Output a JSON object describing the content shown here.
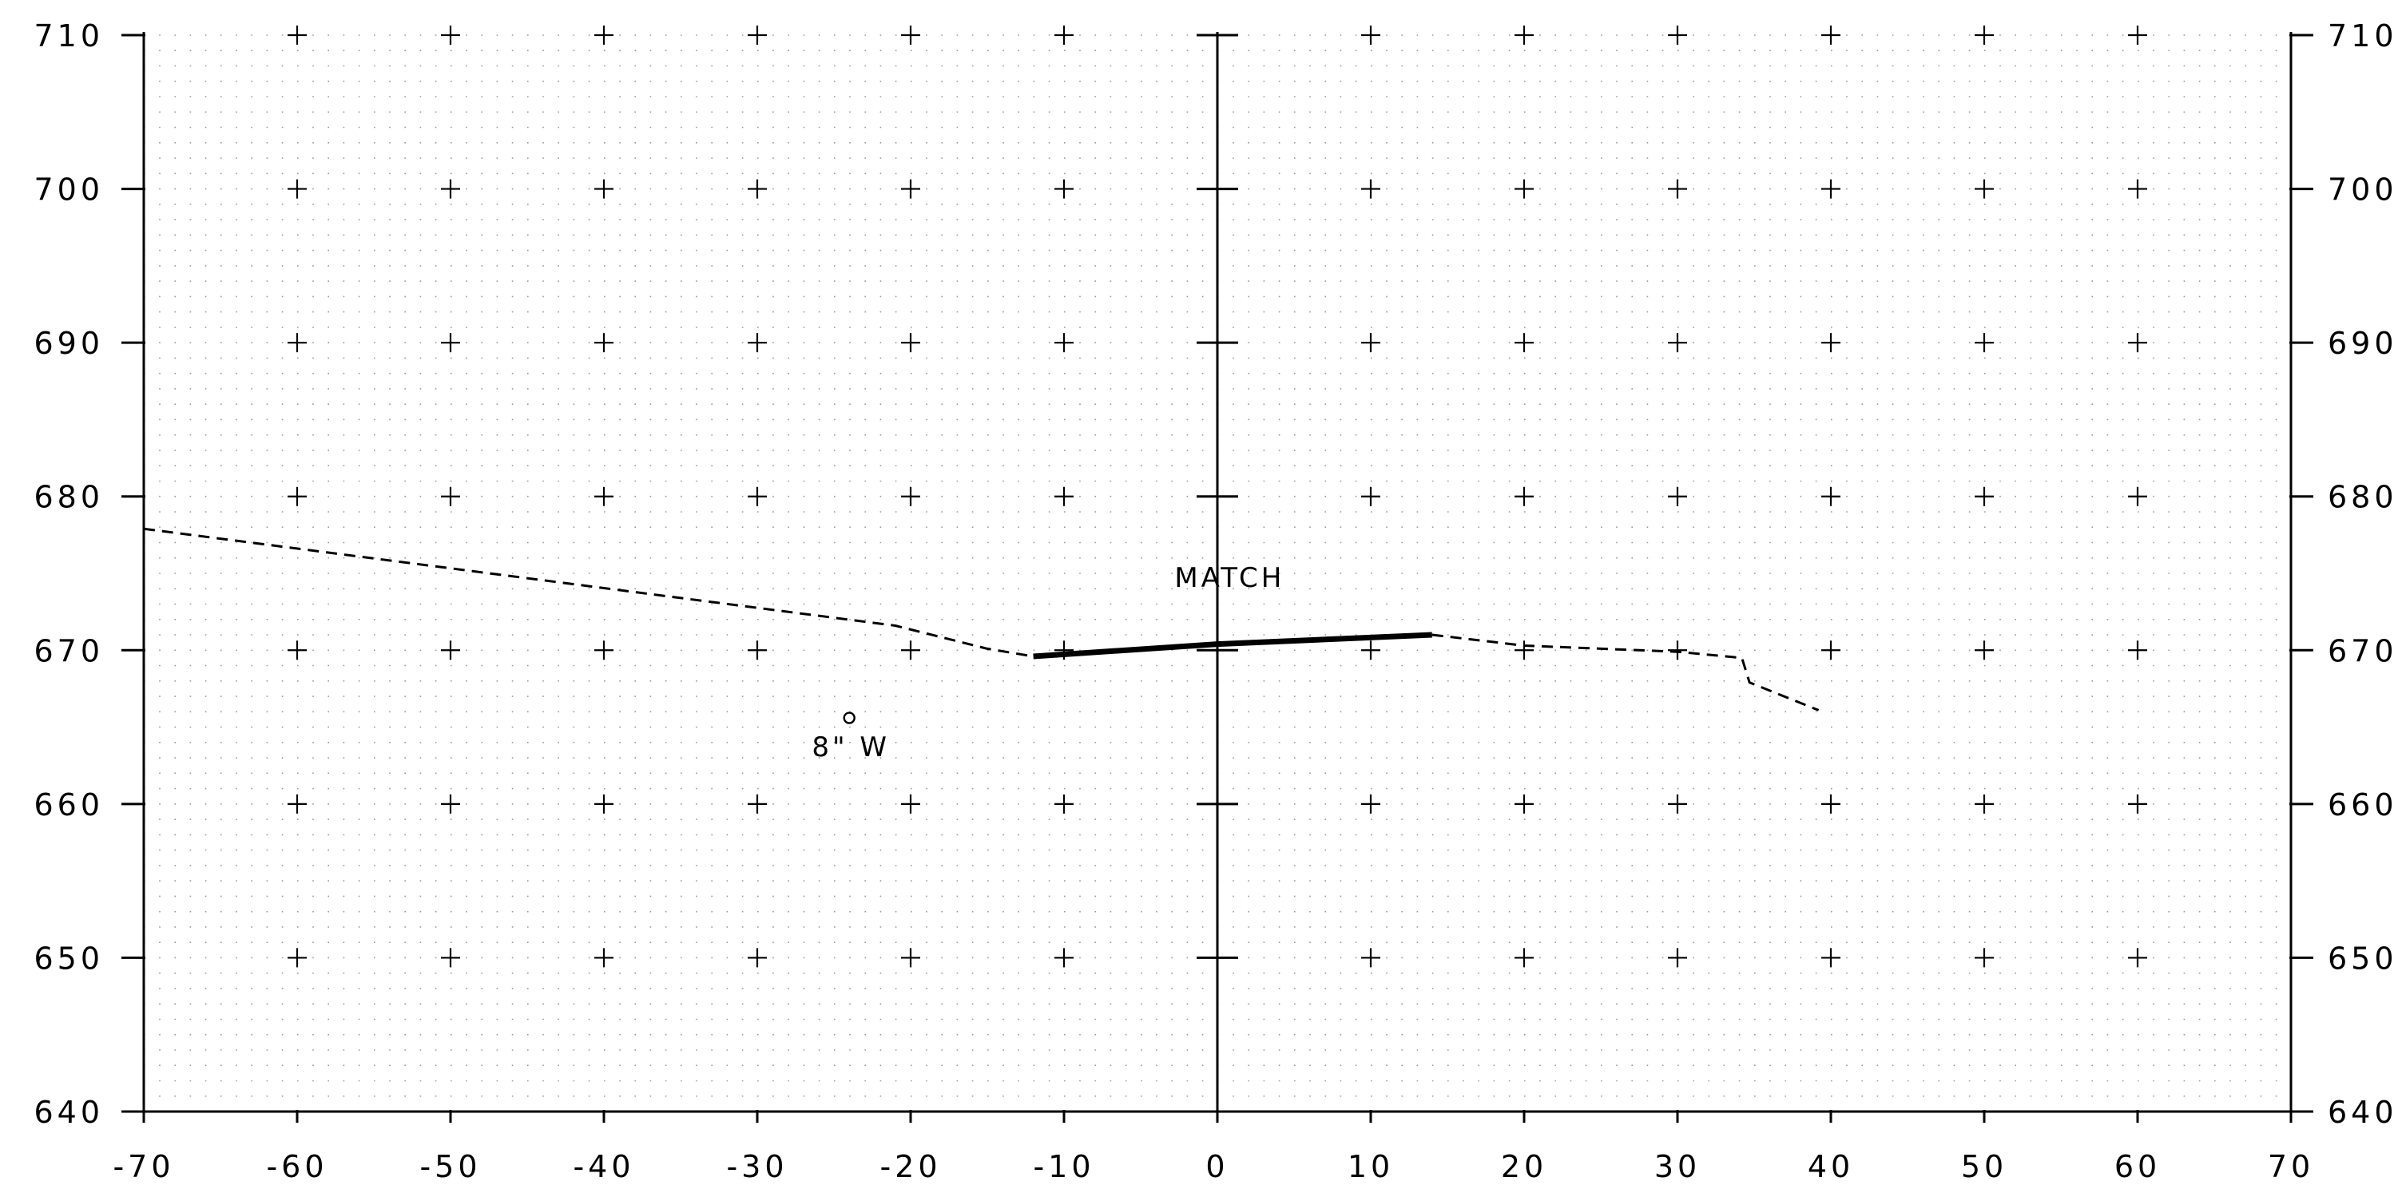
{
  "chart_data": {
    "type": "line",
    "title": "",
    "xlabel": "",
    "ylabel": "",
    "xlim": [
      -70,
      70
    ],
    "ylim": [
      640,
      710
    ],
    "x_ticks": [
      -70,
      -60,
      -50,
      -40,
      -30,
      -20,
      -10,
      0,
      10,
      20,
      30,
      40,
      50,
      60,
      70
    ],
    "x_tick_labels": [
      "-70",
      "-60",
      "-50",
      "-40",
      "-30",
      "-20",
      "-10",
      "0",
      "10",
      "20",
      "30",
      "40",
      "50",
      "60",
      "70"
    ],
    "y_ticks": [
      640,
      650,
      660,
      670,
      680,
      690,
      700,
      710
    ],
    "y_tick_labels": [
      "640",
      "650",
      "660",
      "670",
      "680",
      "690",
      "700",
      "710"
    ],
    "grid": "dotted minor grid every 1 x 1, crosses at major 10 x 10 intersections",
    "series": [
      {
        "style": "dashed",
        "points": [
          [
            -70,
            677.9
          ],
          [
            -21,
            671.6
          ],
          [
            -15,
            670.1
          ],
          [
            -12,
            669.6
          ]
        ]
      },
      {
        "style": "solid-thick",
        "points": [
          [
            -12,
            669.6
          ],
          [
            0,
            670.4
          ],
          [
            14,
            671.0
          ]
        ]
      },
      {
        "style": "dashed",
        "points": [
          [
            14,
            671.0
          ],
          [
            20,
            670.3
          ],
          [
            30,
            669.9
          ],
          [
            34.2,
            669.5
          ],
          [
            34.7,
            667.9
          ],
          [
            39.2,
            666.1
          ]
        ]
      }
    ],
    "annotations": [
      {
        "text": "MATCH",
        "x": 0.8,
        "y": 674.8
      },
      {
        "text": "8\" W",
        "x": -24,
        "y": 665.6,
        "marker": "circle"
      }
    ]
  }
}
